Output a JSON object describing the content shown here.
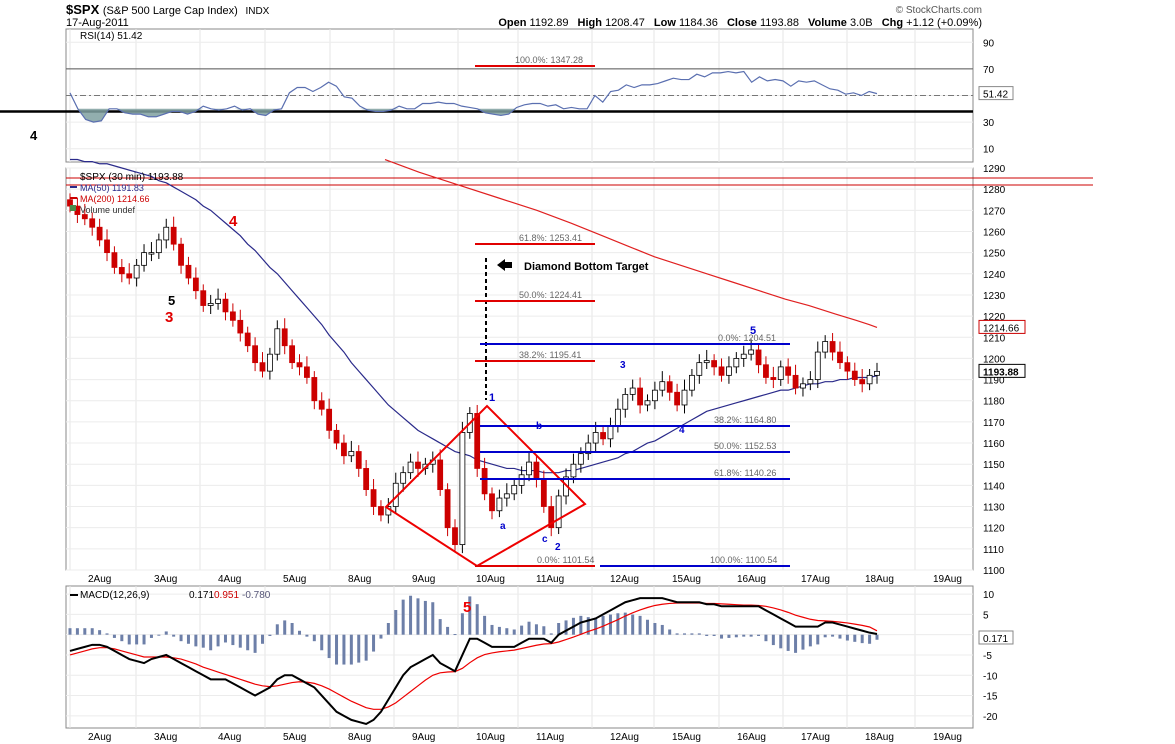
{
  "header": {
    "symbol": "$SPX",
    "name": "(S&P 500 Large Cap Index)",
    "exchange": "INDX",
    "date": "17-Aug-2011",
    "copyright": "© StockCharts.com",
    "open_label": "Open",
    "open": "1192.89",
    "high_label": "High",
    "high": "1208.47",
    "low_label": "Low",
    "low": "1184.36",
    "close_label": "Close",
    "close": "1193.88",
    "volume_label": "Volume",
    "volume": "3.0B",
    "chg_label": "Chg",
    "chg": "+1.12 (+0.09%)"
  },
  "side_label": "4",
  "chart_data": [
    {
      "type": "line",
      "panel": "RSI",
      "legend": [
        "RSI(14) 51.42"
      ],
      "yticks": [
        10,
        30,
        50,
        70,
        90
      ],
      "ylim": [
        0,
        100
      ],
      "reference_lines": [
        70,
        50,
        30
      ],
      "current_label": "51.42",
      "series": [
        {
          "name": "RSI(14)",
          "values": [
            52,
            40,
            32,
            30,
            31,
            40,
            40,
            37,
            36,
            36,
            34,
            34,
            36,
            38,
            38,
            36,
            38,
            42,
            40,
            39,
            40,
            42,
            39,
            40,
            36,
            35,
            39,
            40,
            52,
            56,
            56,
            53,
            56,
            60,
            57,
            49,
            48,
            42,
            39,
            38,
            38,
            39,
            42,
            40,
            40,
            44,
            44,
            45,
            44,
            44,
            42,
            41,
            40,
            37,
            36,
            35,
            36,
            41,
            43,
            44,
            44,
            42,
            43,
            40,
            41,
            40,
            40,
            50,
            45,
            53,
            54,
            58,
            56,
            58,
            58,
            59,
            61,
            63,
            62,
            62,
            66,
            64,
            67,
            67,
            68,
            67,
            68,
            60,
            64,
            61,
            62,
            61,
            57,
            61,
            60,
            61,
            58,
            55,
            54,
            51,
            52,
            50,
            53,
            51.42
          ]
        }
      ]
    },
    {
      "type": "candlestick",
      "panel": "price",
      "legend": [
        "$SPX (30 min) 1193.88",
        "MA(50) 1191.83",
        "MA(200) 1214.66",
        "Volume undef"
      ],
      "yticks": [
        1100,
        1110,
        1120,
        1130,
        1140,
        1150,
        1160,
        1170,
        1180,
        1190,
        1200,
        1210,
        1220,
        1230,
        1240,
        1250,
        1260,
        1270,
        1280,
        1290
      ],
      "ylim": [
        1100,
        1290
      ],
      "xtick_labels": [
        "2Aug",
        "3Aug",
        "4Aug",
        "5Aug",
        "8Aug",
        "9Aug",
        "10Aug",
        "11Aug",
        "12Aug",
        "15Aug",
        "16Aug",
        "17Aug",
        "18Aug",
        "19Aug"
      ],
      "last_price_label": "1193.88",
      "ma200_label": "1214.66",
      "closes": [
        1272,
        1268,
        1266,
        1262,
        1256,
        1250,
        1243,
        1240,
        1238,
        1244,
        1250,
        1250,
        1256,
        1262,
        1254,
        1244,
        1238,
        1232,
        1225,
        1226,
        1228,
        1222,
        1218,
        1212,
        1206,
        1198,
        1194,
        1202,
        1214,
        1206,
        1198,
        1196,
        1191,
        1180,
        1176,
        1166,
        1160,
        1154,
        1156,
        1148,
        1138,
        1130,
        1126,
        1130,
        1141,
        1146,
        1151,
        1148,
        1150,
        1152,
        1138,
        1120,
        1112,
        1165,
        1174,
        1148,
        1136,
        1128,
        1134,
        1136,
        1140,
        1145,
        1151,
        1143,
        1130,
        1120,
        1135,
        1144,
        1150,
        1155,
        1160,
        1165,
        1162,
        1168,
        1176,
        1183,
        1186,
        1178,
        1180,
        1185,
        1189,
        1184,
        1178,
        1185,
        1192,
        1198,
        1199,
        1196,
        1192,
        1196,
        1200,
        1202,
        1204,
        1197,
        1191,
        1190,
        1196,
        1192,
        1186,
        1188,
        1190,
        1203,
        1208,
        1203,
        1198,
        1194,
        1190,
        1188,
        1192,
        1193.88
      ],
      "ma50": [
        1294,
        1294,
        1293,
        1293,
        1292,
        1292,
        1291,
        1290,
        1289,
        1288,
        1287,
        1286,
        1284,
        1283,
        1281,
        1279,
        1277,
        1275,
        1272,
        1270,
        1267,
        1264,
        1261,
        1258,
        1254,
        1251,
        1247,
        1243,
        1240,
        1236,
        1232,
        1228,
        1224,
        1220,
        1216,
        1211,
        1207,
        1203,
        1198,
        1194,
        1190,
        1186,
        1182,
        1178,
        1175,
        1172,
        1169,
        1166,
        1164,
        1162,
        1160,
        1158,
        1156,
        1155,
        1154,
        1152,
        1151,
        1150,
        1149,
        1148,
        1148,
        1147,
        1147,
        1147,
        1146,
        1146,
        1146,
        1147,
        1147,
        1148,
        1149,
        1150,
        1151,
        1152,
        1153,
        1155,
        1156,
        1158,
        1160,
        1161,
        1163,
        1165,
        1167,
        1169,
        1171,
        1173,
        1175,
        1176,
        1177,
        1178,
        1179,
        1180,
        1181,
        1182,
        1183,
        1184,
        1185,
        1185,
        1186,
        1187,
        1188,
        1188,
        1189,
        1189,
        1190,
        1190,
        1191,
        1191,
        1191,
        1191.83
      ],
      "ma200_points": [
        [
          47,
          1294
        ],
        [
          60,
          1288
        ],
        [
          75,
          1282
        ],
        [
          90,
          1276
        ],
        [
          105,
          1270
        ],
        [
          118,
          1264
        ],
        [
          130,
          1258
        ],
        [
          140,
          1253
        ],
        [
          150,
          1248
        ],
        [
          160,
          1244
        ],
        [
          170,
          1240
        ],
        [
          180,
          1236
        ],
        [
          190,
          1232
        ],
        [
          200,
          1228
        ],
        [
          209,
          1225
        ],
        [
          219,
          1221
        ],
        [
          227,
          1218
        ],
        [
          232,
          1216
        ],
        [
          235,
          1214.66
        ]
      ],
      "annotations": [
        {
          "text": "Diamond Bottom Target"
        },
        {
          "text": "5",
          "color": "#000000"
        },
        {
          "text": "3",
          "color": "#e00000"
        },
        {
          "text": "4",
          "color": "#e00000"
        },
        {
          "text": "1",
          "color": "#0000cc"
        },
        {
          "text": "a",
          "color": "#0000cc"
        },
        {
          "text": "b",
          "color": "#0000cc"
        },
        {
          "text": "c",
          "color": "#0000cc"
        },
        {
          "text": "2",
          "color": "#0000cc"
        },
        {
          "text": "3",
          "color": "#0000cc"
        },
        {
          "text": "4",
          "color": "#0000cc"
        },
        {
          "text": "5",
          "color": "#0000cc"
        }
      ],
      "fib_lines": [
        {
          "label": "100.0%: 1347.28",
          "value": 1347.28,
          "color": "#e00000"
        },
        {
          "label": "61.8%: 1253.41",
          "value": 1253.41,
          "color": "#e00000"
        },
        {
          "label": "50.0%: 1224.41",
          "value": 1224.41,
          "color": "#e00000"
        },
        {
          "label": "38.2%: 1195.41",
          "value": 1195.41,
          "color": "#e00000"
        },
        {
          "label": "0.0%: 1101.54",
          "value": 1101.54,
          "color": "#e00000"
        },
        {
          "label": "0.0%: 1204.51",
          "value": 1204.51,
          "color": "#0000cc"
        },
        {
          "label": "38.2%: 1164.80",
          "value": 1164.8,
          "color": "#0000cc"
        },
        {
          "label": "50.0%: 1152.53",
          "value": 1152.53,
          "color": "#0000cc"
        },
        {
          "label": "61.8%: 1140.26",
          "value": 1140.26,
          "color": "#0000cc"
        },
        {
          "label": "100.0%: 1100.54",
          "value": 1100.54,
          "color": "#0000cc"
        }
      ]
    },
    {
      "type": "line",
      "panel": "MACD",
      "legend": [
        "MACD(12,26,9)",
        "0.171",
        "0.951",
        "-0.780"
      ],
      "yticks": [
        10,
        5,
        0,
        -5,
        -10,
        -15,
        -20
      ],
      "ylim": [
        -23,
        12
      ],
      "current_label": "0.171",
      "wave_label": "5",
      "series": [
        {
          "name": "MACD",
          "values": [
            -4,
            -3.5,
            -3,
            -2.5,
            -2.5,
            -3,
            -4,
            -5,
            -6,
            -6.5,
            -7,
            -6,
            -5.5,
            -5,
            -6,
            -7,
            -8,
            -9,
            -10,
            -11,
            -11,
            -11,
            -12,
            -13,
            -14,
            -15,
            -14,
            -13,
            -11,
            -10,
            -10,
            -11,
            -12,
            -13,
            -15,
            -17,
            -19,
            -20,
            -21,
            -21.5,
            -22,
            -21,
            -19,
            -16,
            -13,
            -10,
            -8,
            -7,
            -6,
            -5,
            -7,
            -8,
            -9,
            -5,
            -1,
            -1,
            -2,
            -3,
            -3,
            -3,
            -3,
            -2,
            -1,
            -1,
            -1,
            -2,
            0,
            1,
            2,
            3,
            3.5,
            4,
            5,
            6,
            7,
            8,
            8.5,
            9,
            9,
            9,
            9,
            8.5,
            8,
            8,
            8,
            8,
            7.5,
            7.5,
            7,
            7,
            7,
            7,
            7,
            7,
            6,
            5,
            4,
            3,
            2,
            2,
            2,
            2,
            3,
            3,
            2.5,
            2,
            1.5,
            1,
            0.5,
            0.171
          ]
        },
        {
          "name": "Signal",
          "values": [
            -5,
            -4.5,
            -4,
            -3.5,
            -3.2,
            -3.2,
            -3.5,
            -4,
            -4.5,
            -5,
            -5.5,
            -5.5,
            -5.5,
            -5.5,
            -5.7,
            -6,
            -6.6,
            -7.2,
            -8,
            -8.6,
            -9.2,
            -9.8,
            -10.4,
            -11,
            -11.6,
            -12.2,
            -12.6,
            -12.8,
            -12.6,
            -12.2,
            -11.8,
            -11.6,
            -11.7,
            -12,
            -12.6,
            -13.4,
            -14.4,
            -15.4,
            -16.4,
            -17.2,
            -18,
            -18.4,
            -18.4,
            -17.8,
            -16.8,
            -15.4,
            -14,
            -12.6,
            -11.2,
            -10,
            -9.4,
            -9.2,
            -9.1,
            -8.3,
            -6.9,
            -5.7,
            -4.9,
            -4.5,
            -4.2,
            -4,
            -3.8,
            -3.4,
            -3,
            -2.6,
            -2.3,
            -2.2,
            -1.8,
            -1.2,
            -0.6,
            0.1,
            0.8,
            1.4,
            2.1,
            2.9,
            3.7,
            4.6,
            5.4,
            6.1,
            6.7,
            7.2,
            7.5,
            7.7,
            7.8,
            7.8,
            7.8,
            7.8,
            7.7,
            7.7,
            7.6,
            7.5,
            7.4,
            7.3,
            7.3,
            7.2,
            7,
            6.6,
            6.1,
            5.5,
            4.8,
            4.3,
            3.8,
            3.5,
            3.4,
            3.3,
            3.1,
            2.9,
            2.6,
            2.3,
            1.9,
            0.951
          ]
        }
      ],
      "xtick_labels": [
        "2Aug",
        "3Aug",
        "4Aug",
        "5Aug",
        "8Aug",
        "9Aug",
        "10Aug",
        "11Aug",
        "12Aug",
        "15Aug",
        "16Aug",
        "17Aug",
        "18Aug",
        "19Aug"
      ]
    }
  ]
}
